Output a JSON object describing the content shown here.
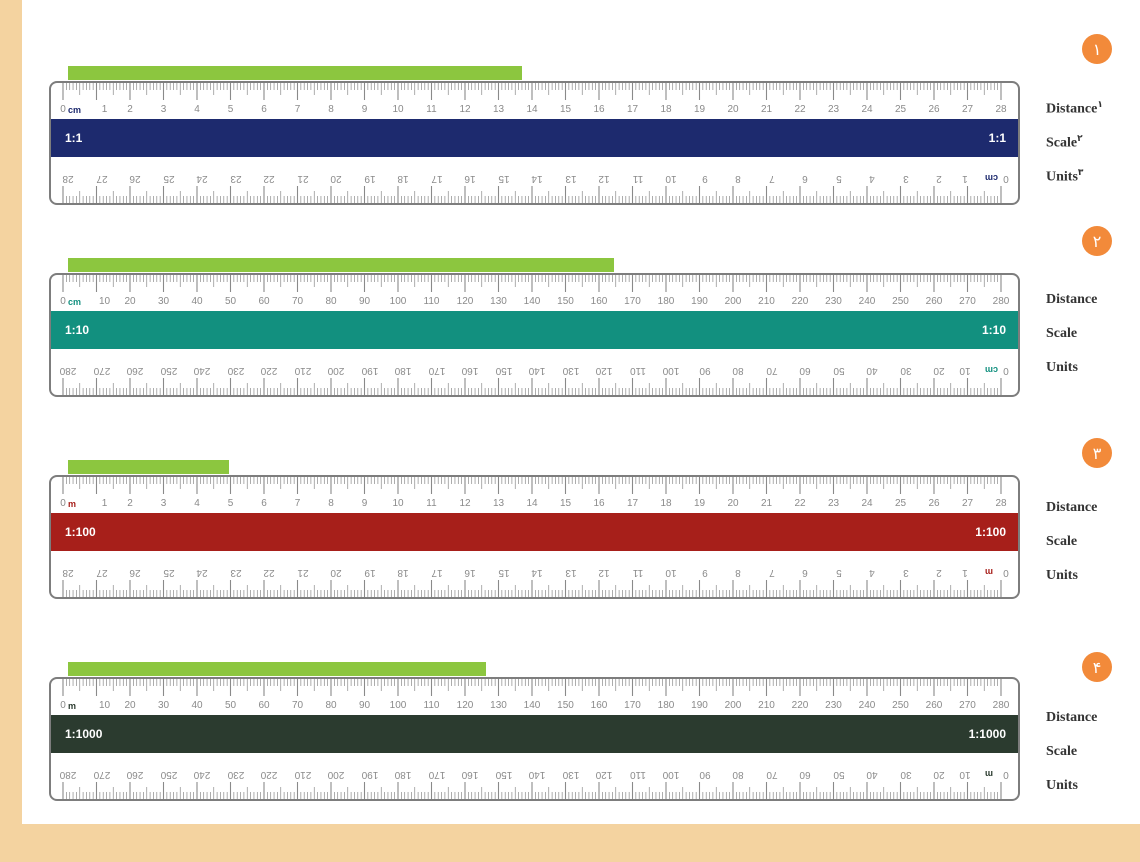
{
  "colors": {
    "accent_bar": "#8cc63f",
    "marker": "#f28a3a",
    "band_1": "#1d2a6e",
    "band_2": "#12907f",
    "band_3": "#a71f1a",
    "band_4": "#2b3b2f",
    "unit_1": "#1d2a6e",
    "unit_2": "#12907f",
    "unit_3": "#a71f1a",
    "unit_4": "#2b3b2f"
  },
  "rulers": [
    {
      "marker": "۱",
      "green_bar_fraction": 0.47,
      "scale_label": "1:1",
      "unit": "cm",
      "top_numbers": [
        "1",
        "2",
        "3",
        "4",
        "5",
        "6",
        "7",
        "8",
        "9",
        "10",
        "11",
        "12",
        "13",
        "14",
        "15",
        "16",
        "17",
        "18",
        "19",
        "20",
        "21",
        "22",
        "23",
        "24",
        "25",
        "26",
        "27",
        "28"
      ],
      "bottom_numbers": [
        "1",
        "2",
        "3",
        "4",
        "5",
        "6",
        "7",
        "8",
        "9",
        "10",
        "11",
        "12",
        "13",
        "14",
        "15",
        "16",
        "17",
        "18",
        "19",
        "20",
        "21",
        "22",
        "23",
        "24",
        "25",
        "26",
        "27",
        "28"
      ],
      "legend": {
        "distance": "Distance",
        "scale": "Scale",
        "units": "Units",
        "sup_distance": "۱",
        "sup_scale": "۲",
        "sup_units": "۳"
      }
    },
    {
      "marker": "۲",
      "green_bar_fraction": 0.565,
      "scale_label": "1:10",
      "unit": "cm",
      "top_numbers": [
        "10",
        "20",
        "30",
        "40",
        "50",
        "60",
        "70",
        "80",
        "90",
        "100",
        "110",
        "120",
        "130",
        "140",
        "150",
        "160",
        "170",
        "180",
        "190",
        "200",
        "210",
        "220",
        "230",
        "240",
        "250",
        "260",
        "270",
        "280"
      ],
      "bottom_numbers": [
        "10",
        "20",
        "30",
        "40",
        "50",
        "60",
        "70",
        "80",
        "90",
        "100",
        "110",
        "120",
        "130",
        "140",
        "150",
        "160",
        "170",
        "180",
        "190",
        "200",
        "210",
        "220",
        "230",
        "240",
        "250",
        "260",
        "270",
        "280"
      ],
      "legend": {
        "distance": "Distance",
        "scale": "Scale",
        "units": "Units"
      }
    },
    {
      "marker": "۳",
      "green_bar_fraction": 0.167,
      "scale_label": "1:100",
      "unit": "m",
      "top_numbers": [
        "1",
        "2",
        "3",
        "4",
        "5",
        "6",
        "7",
        "8",
        "9",
        "10",
        "11",
        "12",
        "13",
        "14",
        "15",
        "16",
        "17",
        "18",
        "19",
        "20",
        "21",
        "22",
        "23",
        "24",
        "25",
        "26",
        "27",
        "28"
      ],
      "bottom_numbers": [
        "1",
        "2",
        "3",
        "4",
        "5",
        "6",
        "7",
        "8",
        "9",
        "10",
        "11",
        "12",
        "13",
        "14",
        "15",
        "16",
        "17",
        "18",
        "19",
        "20",
        "21",
        "22",
        "23",
        "24",
        "25",
        "26",
        "27",
        "28"
      ],
      "legend": {
        "distance": "Distance",
        "scale": "Scale",
        "units": "Units"
      }
    },
    {
      "marker": "۴",
      "green_bar_fraction": 0.432,
      "scale_label": "1:1000",
      "unit": "m",
      "top_numbers": [
        "10",
        "20",
        "30",
        "40",
        "50",
        "60",
        "70",
        "80",
        "90",
        "100",
        "110",
        "120",
        "130",
        "140",
        "150",
        "160",
        "170",
        "180",
        "190",
        "200",
        "210",
        "220",
        "230",
        "240",
        "250",
        "260",
        "270",
        "280"
      ],
      "bottom_numbers": [
        "10",
        "20",
        "30",
        "40",
        "50",
        "60",
        "70",
        "80",
        "90",
        "100",
        "110",
        "120",
        "130",
        "140",
        "150",
        "160",
        "170",
        "180",
        "190",
        "200",
        "210",
        "220",
        "230",
        "240",
        "250",
        "260",
        "270",
        "280"
      ],
      "legend": {
        "distance": "Distance",
        "scale": "Scale",
        "units": "Units"
      }
    }
  ]
}
